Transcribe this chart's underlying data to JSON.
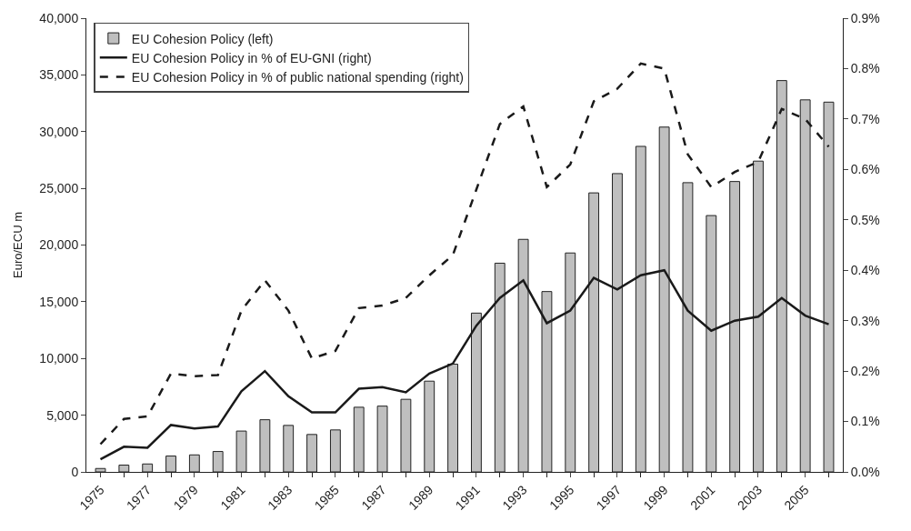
{
  "chart_data": {
    "type": "bar",
    "ylabel": "Euro/ECU m",
    "categories": [
      "1975",
      null,
      "1977",
      null,
      "1979",
      null,
      "1981",
      null,
      "1983",
      null,
      "1985",
      null,
      "1987",
      null,
      "1989",
      null,
      "1991",
      null,
      "1993",
      null,
      "1995",
      null,
      "1997",
      null,
      "1999",
      null,
      "2001",
      null,
      "2003",
      null,
      "2005",
      null
    ],
    "series": [
      {
        "name": "EU Cohesion Policy (left)",
        "color": "#bfbfbf",
        "values": [
          300,
          600,
          700,
          1400,
          1500,
          1800,
          3600,
          4600,
          4100,
          3300,
          3700,
          5700,
          5800,
          6400,
          8000,
          9500,
          14000,
          18400,
          20500,
          15900,
          19300,
          24600,
          26300,
          28700,
          30400,
          25500,
          22600,
          25600,
          27400,
          34500,
          32800,
          32600
        ]
      },
      {
        "name": "EU Cohesion Policy in % of EU-GNI (right)",
        "type": "line",
        "axis": "y2",
        "line_style": "solid",
        "color": "#1a1a1a",
        "values": [
          0.025,
          0.05,
          0.048,
          0.093,
          0.086,
          0.09,
          0.16,
          0.2,
          0.15,
          0.118,
          0.118,
          0.165,
          0.168,
          0.158,
          0.195,
          0.215,
          0.29,
          0.345,
          0.38,
          0.295,
          0.32,
          0.385,
          0.362,
          0.39,
          0.4,
          0.32,
          0.28,
          0.3,
          0.308,
          0.345,
          0.31,
          0.293
        ]
      },
      {
        "name": "EU Cohesion Policy in % of public national spending (right)",
        "type": "line",
        "axis": "y2",
        "line_style": "dashed",
        "color": "#1a1a1a",
        "values": [
          0.055,
          0.105,
          0.11,
          0.195,
          0.19,
          0.192,
          0.32,
          0.38,
          0.32,
          0.225,
          0.24,
          0.325,
          0.33,
          0.345,
          0.39,
          0.43,
          0.56,
          0.69,
          0.725,
          0.565,
          0.61,
          0.735,
          0.76,
          0.81,
          0.8,
          0.63,
          0.565,
          0.595,
          0.615,
          0.72,
          0.7,
          0.645
        ]
      }
    ],
    "ylim": [
      0,
      40000
    ],
    "yticks": [
      {
        "value": 0,
        "label": "0"
      },
      {
        "value": 5000,
        "label": "5,000"
      },
      {
        "value": 10000,
        "label": "10,000"
      },
      {
        "value": 15000,
        "label": "15,000"
      },
      {
        "value": 20000,
        "label": "20,000"
      },
      {
        "value": 25000,
        "label": "25,000"
      },
      {
        "value": 30000,
        "label": "30,000"
      },
      {
        "value": 35000,
        "label": "35,000"
      },
      {
        "value": 40000,
        "label": "40,000"
      }
    ],
    "y2lim": [
      0,
      0.9
    ],
    "y2ticks": [
      {
        "value": 0,
        "label": "0.0%"
      },
      {
        "value": 0.1,
        "label": "0.1%"
      },
      {
        "value": 0.2,
        "label": "0.2%"
      },
      {
        "value": 0.3,
        "label": "0.3%"
      },
      {
        "value": 0.4,
        "label": "0.4%"
      },
      {
        "value": 0.5,
        "label": "0.5%"
      },
      {
        "value": 0.6,
        "label": "0.6%"
      },
      {
        "value": 0.7,
        "label": "0.7%"
      },
      {
        "value": 0.8,
        "label": "0.8%"
      },
      {
        "value": 0.9,
        "label": "0.9%"
      }
    ],
    "legend": "top left"
  }
}
